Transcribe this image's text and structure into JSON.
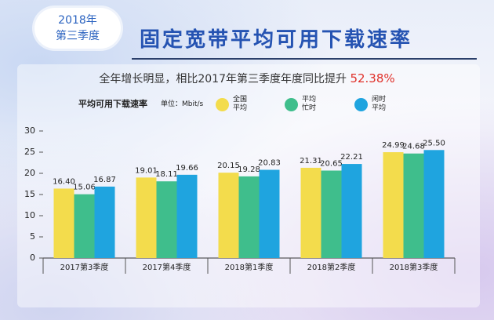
{
  "chart_data": {
    "type": "bar",
    "badge": [
      "2018年",
      "第三季度"
    ],
    "title": "固定宽带平均可用下载速率",
    "subtitle": "全年增长明显，相比2017年第三季度年度同比提升",
    "highlight": "52.38%",
    "y_label": "平均可用下载速率",
    "unit": "单位：Mbit/s",
    "categories": [
      "2017第3季度",
      "2017第4季度",
      "2018第1季度",
      "2018第2季度",
      "2018第3季度"
    ],
    "series": [
      {
        "name": "全国平均",
        "color": "#f3dc4c",
        "values": [
          16.4,
          19.01,
          20.15,
          21.31,
          24.99
        ],
        "value_labels": [
          "16.40",
          "19.01",
          "20.15",
          "21.31",
          "24.99"
        ]
      },
      {
        "name": "平均忙时",
        "color": "#3fbe8c",
        "values": [
          15.06,
          18.11,
          19.28,
          20.65,
          24.68
        ],
        "value_labels": [
          "15.06",
          "18.11",
          "19.28",
          "20.65",
          "24.68"
        ]
      },
      {
        "name": "闲时平均",
        "color": "#1fa4df",
        "values": [
          16.87,
          19.66,
          20.83,
          22.21,
          25.5
        ],
        "value_labels": [
          "16.87",
          "19.66",
          "20.83",
          "22.21",
          "25.50"
        ]
      }
    ],
    "ylim": [
      0,
      30
    ],
    "yticks": [
      0,
      5,
      10,
      15,
      20,
      25,
      30
    ]
  }
}
